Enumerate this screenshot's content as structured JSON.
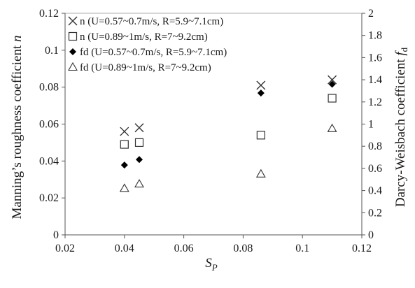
{
  "chart_data": {
    "type": "scatter",
    "title": "",
    "xlabel": "S",
    "xlabel_sub": "P",
    "ylabel_left": "Manning’s roughness coefficient ",
    "ylabel_left_var": "n",
    "ylabel_right": "Darcy-Weisbach coefficient ",
    "ylabel_right_var": "f",
    "ylabel_right_sub": "d",
    "xlim": [
      0.02,
      0.12
    ],
    "ylim_left": [
      0,
      0.12
    ],
    "ylim_right": [
      0,
      2
    ],
    "grid": false,
    "legend_position": "top-left",
    "x_ticks": [
      "0.02",
      "0.04",
      "0.06",
      "0.08",
      "0.1",
      "0.12"
    ],
    "y_left_ticks": [
      "0",
      "0.02",
      "0.04",
      "0.06",
      "0.08",
      "0.1",
      "0.12"
    ],
    "y_right_ticks": [
      "0",
      "0.2",
      "0.4",
      "0.6",
      "0.8",
      "1",
      "1.2",
      "1.4",
      "1.6",
      "1.8",
      "2"
    ],
    "series": [
      {
        "name": "n (U=0.57~0.7m/s, R=5.9~7.1cm)",
        "marker": "x",
        "axis": "left",
        "color": "#333333",
        "x": [
          0.04,
          0.045,
          0.086,
          0.11
        ],
        "y": [
          0.056,
          0.058,
          0.081,
          0.084
        ]
      },
      {
        "name": "n (U=0.89~1m/s, R=7~9.2cm)",
        "marker": "square-open",
        "axis": "left",
        "color": "#333333",
        "x": [
          0.04,
          0.045,
          0.086,
          0.11
        ],
        "y": [
          0.049,
          0.05,
          0.054,
          0.074
        ]
      },
      {
        "name": "fd (U=0.57~0.7m/s, R=5.9~7.1cm)",
        "marker": "diamond-filled",
        "axis": "right",
        "color": "#000000",
        "x": [
          0.04,
          0.045,
          0.086,
          0.11
        ],
        "y": [
          0.63,
          0.68,
          1.28,
          1.36
        ]
      },
      {
        "name": "fd (U=0.89~1m/s, R=7~9.2cm)",
        "marker": "triangle-open",
        "axis": "right",
        "color": "#333333",
        "x": [
          0.04,
          0.045,
          0.086,
          0.11
        ],
        "y": [
          0.42,
          0.46,
          0.55,
          0.96
        ]
      }
    ]
  }
}
